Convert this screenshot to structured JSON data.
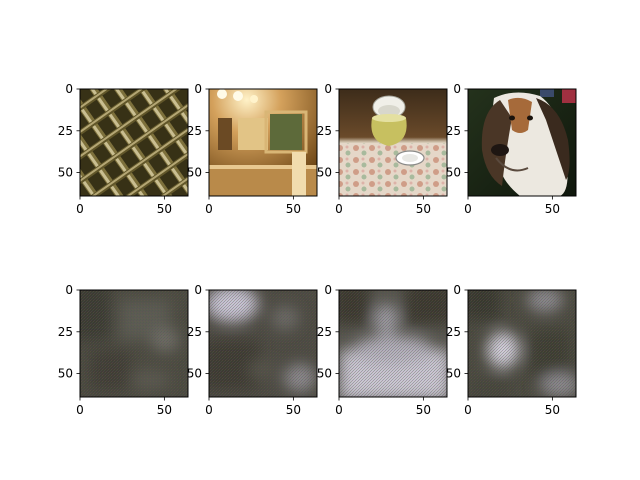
{
  "chart_data": {
    "type": "image_grid",
    "rows": 2,
    "cols": 4,
    "xlim": [
      0,
      64
    ],
    "ylim": [
      64,
      0
    ],
    "xticks": [
      0,
      50
    ],
    "yticks": [
      0,
      25,
      50
    ],
    "panels": [
      {
        "row": 0,
        "col": 0,
        "content": "ornate metallic lattice pattern",
        "palette": [
          "#3a3318",
          "#6b5f2e",
          "#b8a56a",
          "#e6d9a8"
        ]
      },
      {
        "row": 0,
        "col": 1,
        "content": "warm-lit bathroom with mirror",
        "palette": [
          "#5a3a12",
          "#a9722a",
          "#d4a15c",
          "#f1d9a8"
        ]
      },
      {
        "row": 0,
        "col": 2,
        "content": "yellow teapot and white plate on floral tablecloth",
        "palette": [
          "#3d2c1a",
          "#c7c060",
          "#e8dcc6",
          "#c98f78"
        ]
      },
      {
        "row": 0,
        "col": 3,
        "content": "basset hound portrait",
        "palette": [
          "#1d2a18",
          "#4a3a2c",
          "#a66a3a",
          "#ece8e0"
        ]
      },
      {
        "row": 1,
        "col": 0,
        "content": "blurred reconstruction",
        "palette": [
          "#3b3a30",
          "#4b4a40",
          "#5c5b52",
          "#6e6d66"
        ]
      },
      {
        "row": 1,
        "col": 1,
        "content": "blurred reconstruction",
        "palette": [
          "#3d3a30",
          "#4c4a42",
          "#8c8a8e",
          "#c8c4d4"
        ]
      },
      {
        "row": 1,
        "col": 2,
        "content": "blurred reconstruction",
        "palette": [
          "#3a392f",
          "#55544c",
          "#9e9ca4",
          "#c9c6d2"
        ]
      },
      {
        "row": 1,
        "col": 3,
        "content": "blurred reconstruction",
        "palette": [
          "#38372d",
          "#4a493f",
          "#8d8b90",
          "#d2cfdb"
        ]
      }
    ]
  }
}
